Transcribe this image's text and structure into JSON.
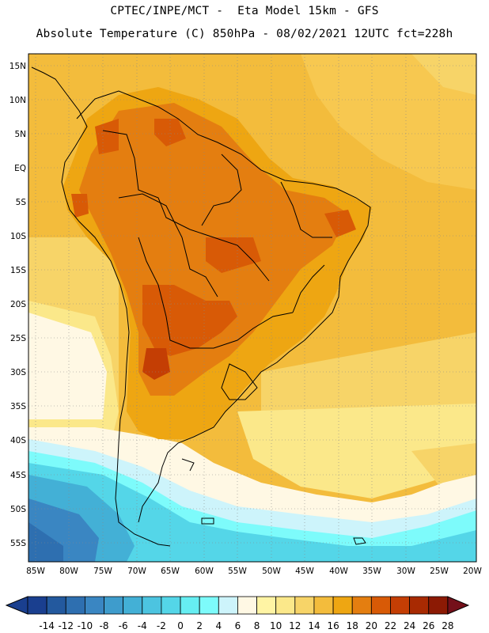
{
  "header": {
    "line1": "CPTEC/INPE/MCT -  Eta Model 15km - GFS",
    "line2": "Absolute Temperature (C) 850hPa - 08/02/2021 12UTC fct=228h"
  },
  "map": {
    "lat_labels": [
      "15N",
      "10N",
      "5N",
      "EQ",
      "5S",
      "10S",
      "15S",
      "20S",
      "25S",
      "30S",
      "35S",
      "40S",
      "45S",
      "50S",
      "55S"
    ],
    "lon_labels": [
      "85W",
      "80W",
      "75W",
      "70W",
      "65W",
      "60W",
      "55W",
      "50W",
      "45W",
      "40W",
      "35W",
      "30W",
      "25W",
      "20W"
    ]
  },
  "colorbar": {
    "labels": [
      "-14",
      "-12",
      "-10",
      "-8",
      "-6",
      "-4",
      "-2",
      "0",
      "2",
      "4",
      "6",
      "8",
      "10",
      "12",
      "14",
      "16",
      "18",
      "20",
      "22",
      "24",
      "26",
      "28"
    ],
    "colors": [
      "#1a3f8f",
      "#23599e",
      "#2e6fb0",
      "#3a86c2",
      "#3e9ccc",
      "#43b0d6",
      "#4cc4e0",
      "#54d6e8",
      "#66eef2",
      "#7dfbfb",
      "#cdf4fb",
      "#fff8e4",
      "#fff4a4",
      "#fbe88a",
      "#f7d468",
      "#f3bc3c",
      "#eea612",
      "#e47e10",
      "#d85a06",
      "#c43e04",
      "#a82a02",
      "#8c1a04",
      "#74101a"
    ]
  }
}
